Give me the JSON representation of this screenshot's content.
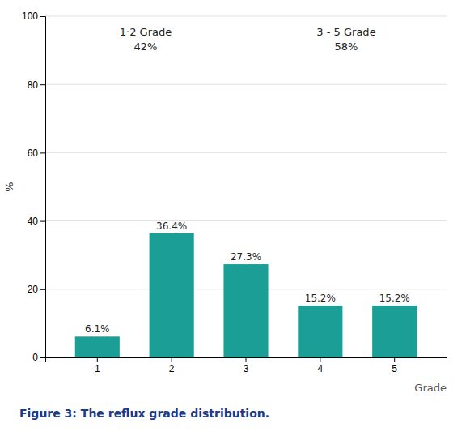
{
  "chart_data": {
    "type": "bar",
    "title": "Figure 3: The reflux grade distribution.",
    "categories": [
      "1",
      "2",
      "3",
      "4",
      "5"
    ],
    "values": [
      6.1,
      36.4,
      27.3,
      15.2,
      15.2
    ],
    "value_labels": [
      "6.1%",
      "36.4%",
      "27.3%",
      "15.2%",
      "15.2%"
    ],
    "data_labels": true,
    "color": "#1a9e96",
    "ylim": [
      0,
      100
    ],
    "yticks": [
      0,
      20,
      40,
      60,
      80,
      100
    ],
    "ylabel": "%",
    "xlabel": "Grade",
    "annotations": [
      "1·2 Grade\n42%",
      "3 - 5 Grade\n58%"
    ],
    "grid": true
  }
}
